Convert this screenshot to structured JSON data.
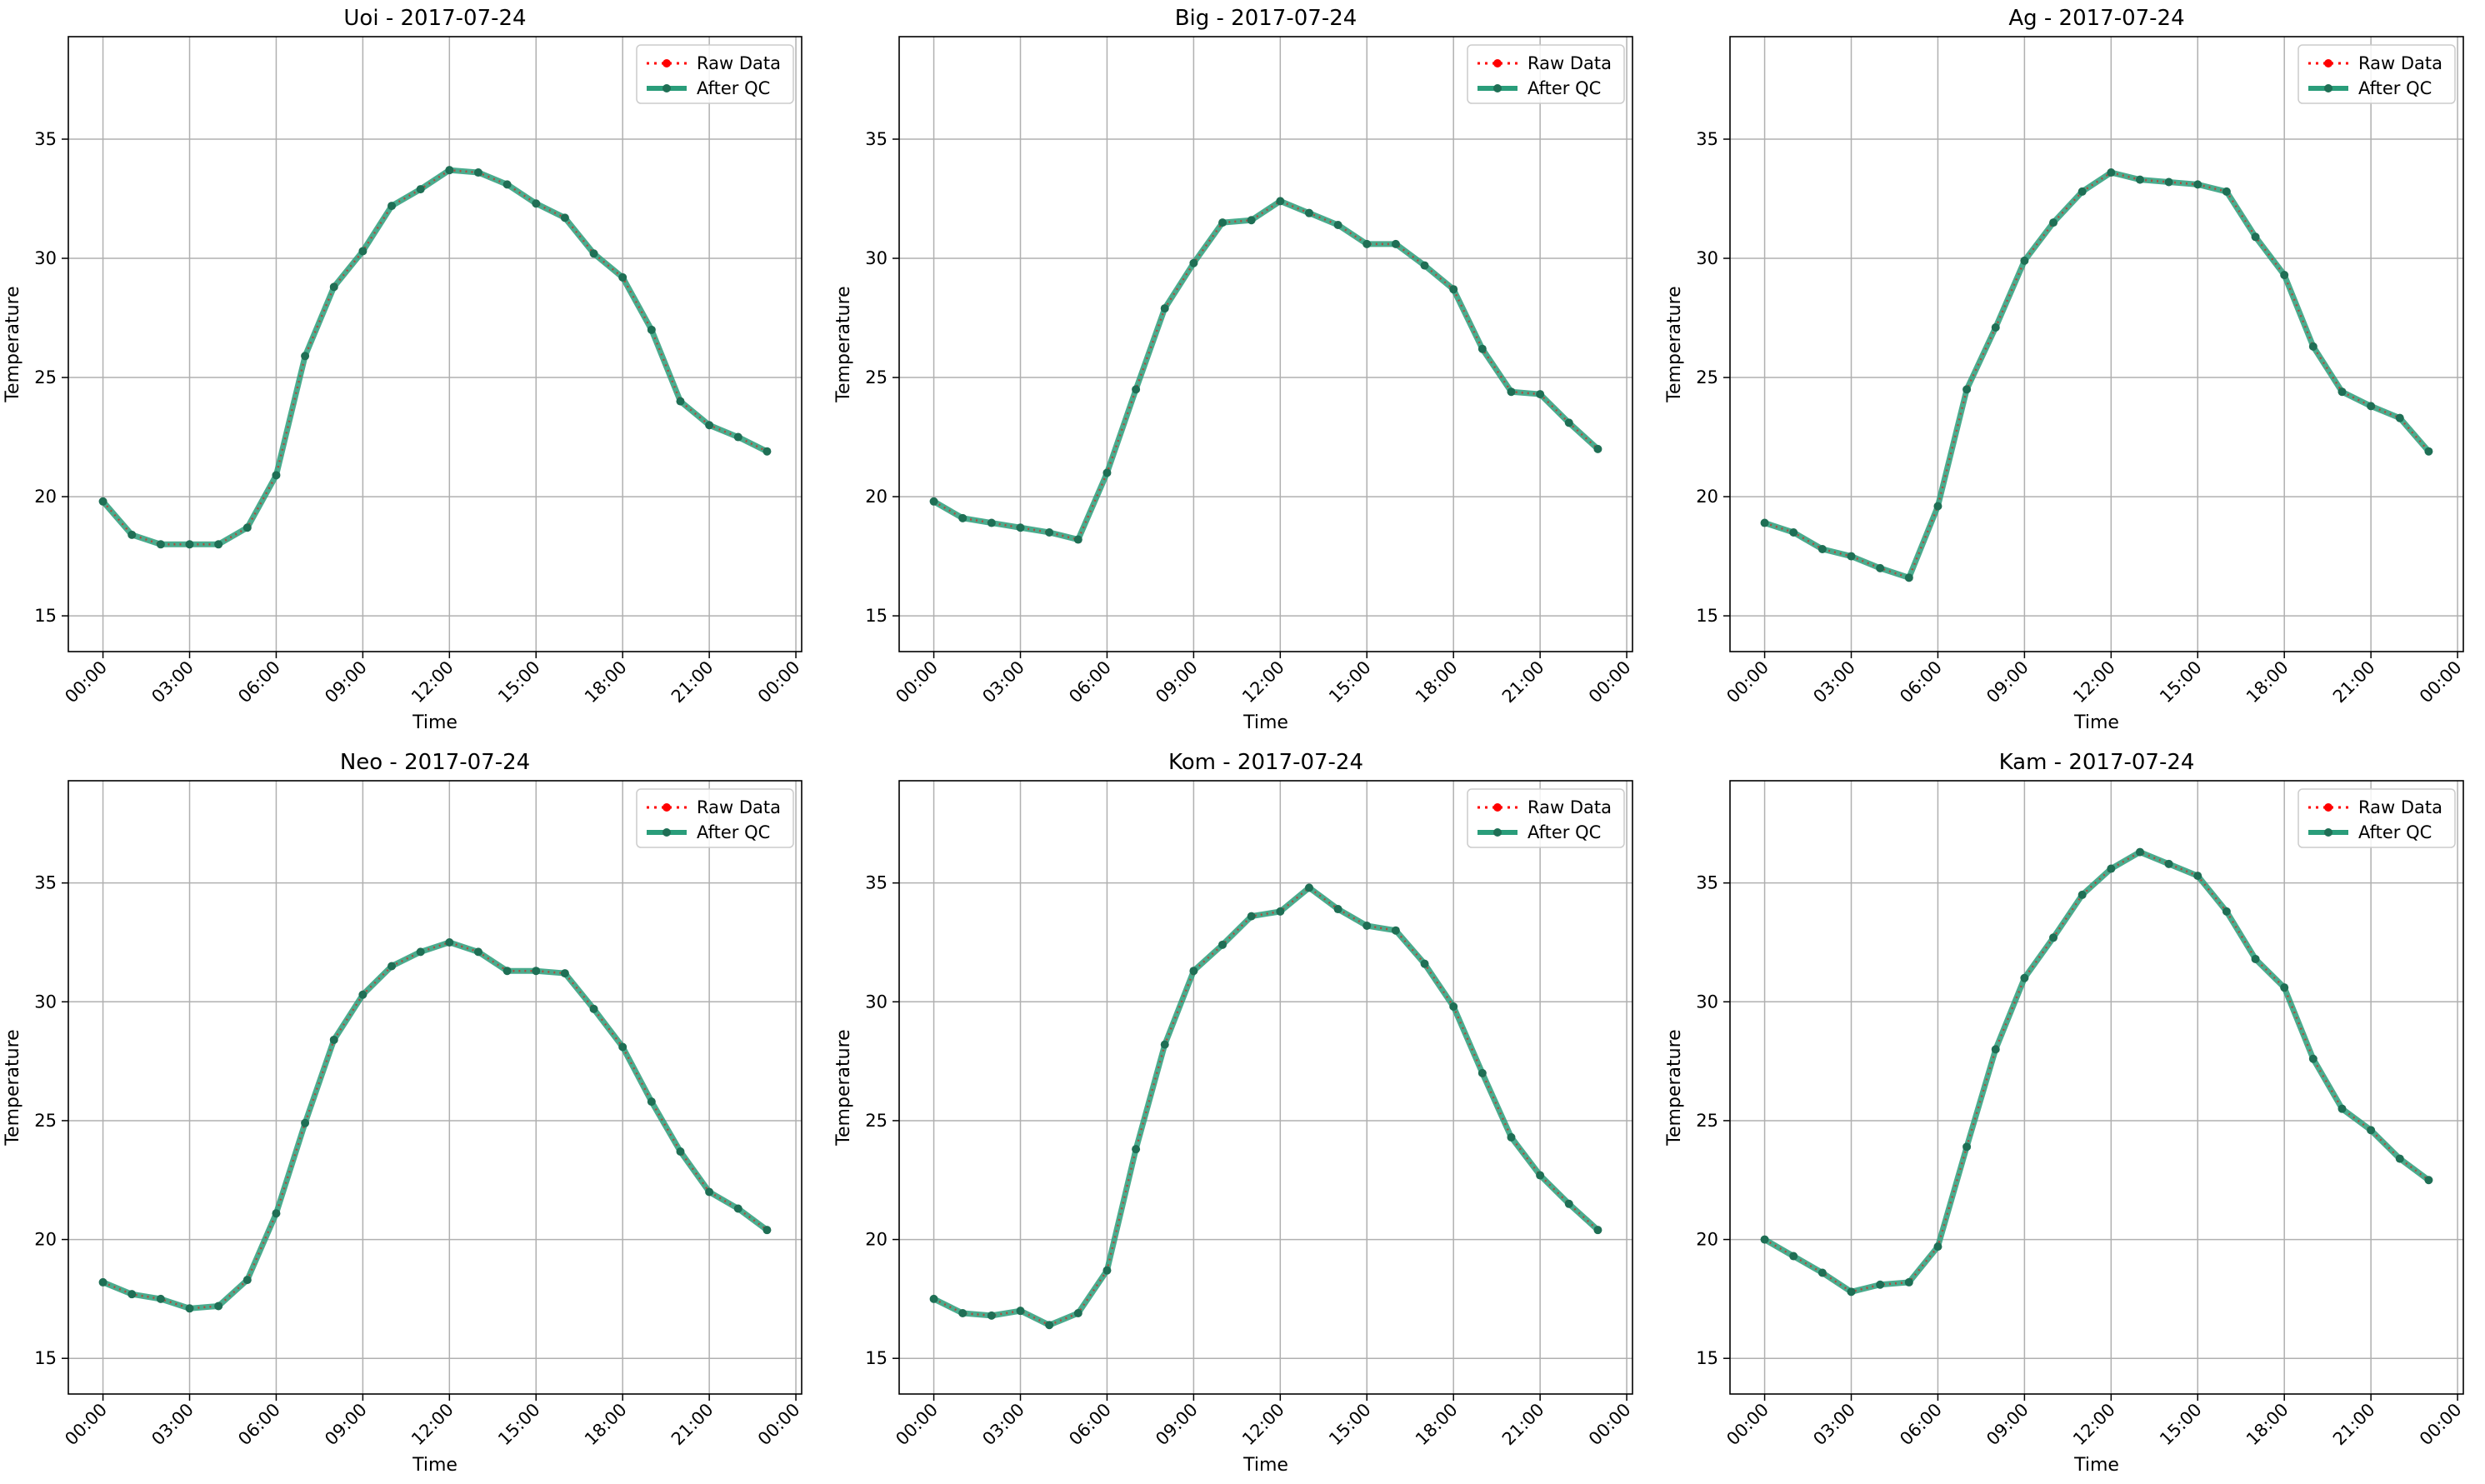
{
  "figure": {
    "background": "#ffffff"
  },
  "colors": {
    "raw": "#ff0000",
    "qc": "#2a9d7a",
    "qc_marker": "#1f6f55",
    "grid": "#b0b0b0",
    "axis": "#000000"
  },
  "legend": {
    "raw_label": "Raw Data",
    "qc_label": "After QC"
  },
  "chart_data": [
    {
      "type": "line",
      "title": "Uoi - 2017-07-24",
      "xlabel": "Time",
      "ylabel": "Temperature",
      "ylim": [
        13.5,
        39.3
      ],
      "yticks": [
        15,
        20,
        25,
        30,
        35
      ],
      "xlim_hours": [
        -1.2,
        24.2
      ],
      "xticks": [
        "00:00",
        "03:00",
        "06:00",
        "09:00",
        "12:00",
        "15:00",
        "18:00",
        "21:00",
        "00:00"
      ],
      "grid": true,
      "legend_position": "top-right",
      "x_hours": [
        0,
        1,
        2,
        3,
        4,
        5,
        6,
        7,
        8,
        9,
        10,
        11,
        12,
        13,
        14,
        15,
        16,
        17,
        18,
        19,
        20,
        21,
        22,
        23
      ],
      "series": [
        {
          "name": "Raw Data",
          "values": [
            19.8,
            18.4,
            18.0,
            18.0,
            18.0,
            18.7,
            20.9,
            25.9,
            28.8,
            30.3,
            32.2,
            32.9,
            33.7,
            33.6,
            33.1,
            32.3,
            31.7,
            30.2,
            29.2,
            27.0,
            24.0,
            23.0,
            22.5,
            21.9
          ]
        },
        {
          "name": "After QC",
          "values": [
            19.8,
            18.4,
            18.0,
            18.0,
            18.0,
            18.7,
            20.9,
            25.9,
            28.8,
            30.3,
            32.2,
            32.9,
            33.7,
            33.6,
            33.1,
            32.3,
            31.7,
            30.2,
            29.2,
            27.0,
            24.0,
            23.0,
            22.5,
            21.9
          ]
        }
      ]
    },
    {
      "type": "line",
      "title": "Big - 2017-07-24",
      "xlabel": "Time",
      "ylabel": "Temperature",
      "ylim": [
        13.5,
        39.3
      ],
      "yticks": [
        15,
        20,
        25,
        30,
        35
      ],
      "xlim_hours": [
        -1.2,
        24.2
      ],
      "xticks": [
        "00:00",
        "03:00",
        "06:00",
        "09:00",
        "12:00",
        "15:00",
        "18:00",
        "21:00",
        "00:00"
      ],
      "grid": true,
      "legend_position": "top-right",
      "x_hours": [
        0,
        1,
        2,
        3,
        4,
        5,
        6,
        7,
        8,
        9,
        10,
        11,
        12,
        13,
        14,
        15,
        16,
        17,
        18,
        19,
        20,
        21,
        22,
        23
      ],
      "series": [
        {
          "name": "Raw Data",
          "values": [
            19.8,
            19.1,
            18.9,
            18.7,
            18.5,
            18.2,
            21.0,
            24.5,
            27.9,
            29.8,
            31.5,
            31.6,
            32.4,
            31.9,
            31.4,
            30.6,
            30.6,
            29.7,
            28.7,
            26.2,
            24.4,
            24.3,
            23.1,
            22.0
          ]
        },
        {
          "name": "After QC",
          "values": [
            19.8,
            19.1,
            18.9,
            18.7,
            18.5,
            18.2,
            21.0,
            24.5,
            27.9,
            29.8,
            31.5,
            31.6,
            32.4,
            31.9,
            31.4,
            30.6,
            30.6,
            29.7,
            28.7,
            26.2,
            24.4,
            24.3,
            23.1,
            22.0
          ]
        }
      ]
    },
    {
      "type": "line",
      "title": "Ag - 2017-07-24",
      "xlabel": "Time",
      "ylabel": "Temperature",
      "ylim": [
        13.5,
        39.3
      ],
      "yticks": [
        15,
        20,
        25,
        30,
        35
      ],
      "xlim_hours": [
        -1.2,
        24.2
      ],
      "xticks": [
        "00:00",
        "03:00",
        "06:00",
        "09:00",
        "12:00",
        "15:00",
        "18:00",
        "21:00",
        "00:00"
      ],
      "grid": true,
      "legend_position": "top-right",
      "x_hours": [
        0,
        1,
        2,
        3,
        4,
        5,
        6,
        7,
        8,
        9,
        10,
        11,
        12,
        13,
        14,
        15,
        16,
        17,
        18,
        19,
        20,
        21,
        22,
        23
      ],
      "series": [
        {
          "name": "Raw Data",
          "values": [
            18.9,
            18.5,
            17.8,
            17.5,
            17.0,
            16.6,
            19.6,
            24.5,
            27.1,
            29.9,
            31.5,
            32.8,
            33.6,
            33.3,
            33.2,
            33.1,
            32.8,
            30.9,
            29.3,
            26.3,
            24.4,
            23.8,
            23.3,
            21.9
          ]
        },
        {
          "name": "After QC",
          "values": [
            18.9,
            18.5,
            17.8,
            17.5,
            17.0,
            16.6,
            19.6,
            24.5,
            27.1,
            29.9,
            31.5,
            32.8,
            33.6,
            33.3,
            33.2,
            33.1,
            32.8,
            30.9,
            29.3,
            26.3,
            24.4,
            23.8,
            23.3,
            21.9
          ]
        }
      ]
    },
    {
      "type": "line",
      "title": "Neo - 2017-07-24",
      "xlabel": "Time",
      "ylabel": "Temperature",
      "ylim": [
        13.5,
        39.3
      ],
      "yticks": [
        15,
        20,
        25,
        30,
        35
      ],
      "xlim_hours": [
        -1.2,
        24.2
      ],
      "xticks": [
        "00:00",
        "03:00",
        "06:00",
        "09:00",
        "12:00",
        "15:00",
        "18:00",
        "21:00",
        "00:00"
      ],
      "grid": true,
      "legend_position": "top-right",
      "x_hours": [
        0,
        1,
        2,
        3,
        4,
        5,
        6,
        7,
        8,
        9,
        10,
        11,
        12,
        13,
        14,
        15,
        16,
        17,
        18,
        19,
        20,
        21,
        22,
        23
      ],
      "series": [
        {
          "name": "Raw Data",
          "values": [
            18.2,
            17.7,
            17.5,
            17.1,
            17.2,
            18.3,
            21.1,
            24.9,
            28.4,
            30.3,
            31.5,
            32.1,
            32.5,
            32.1,
            31.3,
            31.3,
            31.2,
            29.7,
            28.1,
            25.8,
            23.7,
            22.0,
            21.3,
            20.4
          ]
        },
        {
          "name": "After QC",
          "values": [
            18.2,
            17.7,
            17.5,
            17.1,
            17.2,
            18.3,
            21.1,
            24.9,
            28.4,
            30.3,
            31.5,
            32.1,
            32.5,
            32.1,
            31.3,
            31.3,
            31.2,
            29.7,
            28.1,
            25.8,
            23.7,
            22.0,
            21.3,
            20.4
          ]
        }
      ]
    },
    {
      "type": "line",
      "title": "Kom - 2017-07-24",
      "xlabel": "Time",
      "ylabel": "Temperature",
      "ylim": [
        13.5,
        39.3
      ],
      "yticks": [
        15,
        20,
        25,
        30,
        35
      ],
      "xlim_hours": [
        -1.2,
        24.2
      ],
      "xticks": [
        "00:00",
        "03:00",
        "06:00",
        "09:00",
        "12:00",
        "15:00",
        "18:00",
        "21:00",
        "00:00"
      ],
      "grid": true,
      "legend_position": "top-right",
      "x_hours": [
        0,
        1,
        2,
        3,
        4,
        5,
        6,
        7,
        8,
        9,
        10,
        11,
        12,
        13,
        14,
        15,
        16,
        17,
        18,
        19,
        20,
        21,
        22,
        23
      ],
      "series": [
        {
          "name": "Raw Data",
          "values": [
            17.5,
            16.9,
            16.8,
            17.0,
            16.4,
            16.9,
            18.7,
            23.8,
            28.2,
            31.3,
            32.4,
            33.6,
            33.8,
            34.8,
            33.9,
            33.2,
            33.0,
            31.6,
            29.8,
            27.0,
            24.3,
            22.7,
            21.5,
            20.4
          ]
        },
        {
          "name": "After QC",
          "values": [
            17.5,
            16.9,
            16.8,
            17.0,
            16.4,
            16.9,
            18.7,
            23.8,
            28.2,
            31.3,
            32.4,
            33.6,
            33.8,
            34.8,
            33.9,
            33.2,
            33.0,
            31.6,
            29.8,
            27.0,
            24.3,
            22.7,
            21.5,
            20.4
          ]
        }
      ]
    },
    {
      "type": "line",
      "title": "Kam - 2017-07-24",
      "xlabel": "Time",
      "ylabel": "Temperature",
      "ylim": [
        13.5,
        39.3
      ],
      "yticks": [
        15,
        20,
        25,
        30,
        35
      ],
      "xlim_hours": [
        -1.2,
        24.2
      ],
      "xticks": [
        "00:00",
        "03:00",
        "06:00",
        "09:00",
        "12:00",
        "15:00",
        "18:00",
        "21:00",
        "00:00"
      ],
      "grid": true,
      "legend_position": "top-right",
      "x_hours": [
        0,
        1,
        2,
        3,
        4,
        5,
        6,
        7,
        8,
        9,
        10,
        11,
        12,
        13,
        14,
        15,
        16,
        17,
        18,
        19,
        20,
        21,
        22,
        23
      ],
      "series": [
        {
          "name": "Raw Data",
          "values": [
            20.0,
            19.3,
            18.6,
            17.8,
            18.1,
            18.2,
            19.7,
            23.9,
            28.0,
            31.0,
            32.7,
            34.5,
            35.6,
            36.3,
            35.8,
            35.3,
            33.8,
            31.8,
            30.6,
            27.6,
            25.5,
            24.6,
            23.4,
            22.5
          ]
        },
        {
          "name": "After QC",
          "values": [
            20.0,
            19.3,
            18.6,
            17.8,
            18.1,
            18.2,
            19.7,
            23.9,
            28.0,
            31.0,
            32.7,
            34.5,
            35.6,
            36.3,
            35.8,
            35.3,
            33.8,
            31.8,
            30.6,
            27.6,
            25.5,
            24.6,
            23.4,
            22.5
          ]
        }
      ]
    }
  ]
}
